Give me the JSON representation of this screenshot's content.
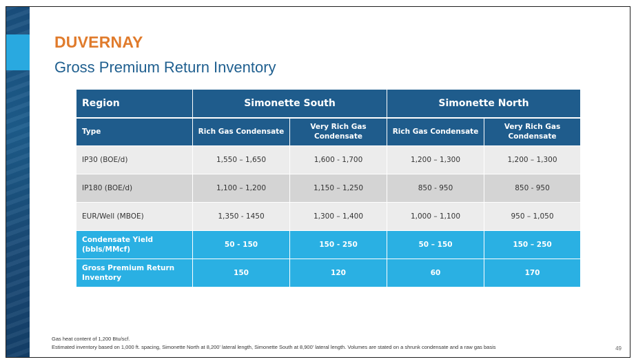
{
  "title": "DUVERNAY",
  "subtitle": "Gross Premium Return Inventory",
  "table": {
    "header": {
      "region_label": "Region",
      "groups": [
        "Simonette South",
        "Simonette North"
      ]
    },
    "subheader": {
      "type_label": "Type",
      "columns": [
        "Rich Gas Condensate",
        "Very Rich Gas Condensate",
        "Rich Gas Condensate",
        "Very Rich Gas Condensate"
      ]
    },
    "rows": [
      {
        "label": "IP30 (BOE/d)",
        "values": [
          "1,550 – 1,650",
          "1,600 - 1,700",
          "1,200 – 1,300",
          "1,200 – 1,300"
        ]
      },
      {
        "label": "IP180 (BOE/d)",
        "values": [
          "1,100 – 1,200",
          "1,150 – 1,250",
          "850 - 950",
          "850 - 950"
        ]
      },
      {
        "label": "EUR/Well (MBOE)",
        "values": [
          "1,350 - 1450",
          "1,300 – 1,400",
          "1,000 – 1,100",
          "950 – 1,050"
        ]
      },
      {
        "label": "Condensate Yield (bbls/MMcf)",
        "values": [
          "50 - 150",
          "150 - 250",
          "50 – 150",
          "150 – 250"
        ]
      },
      {
        "label": "Gross Premium Return Inventory",
        "values": [
          "150",
          "120",
          "60",
          "170"
        ]
      }
    ]
  },
  "notes": [
    "Gas heat content of 1,200 Btu/scf.",
    "Estimated inventory based on 1,000 ft. spacing, Simonette North at 8,200' lateral length, Simonette South at 8,900' lateral length. Volumes are stated on a shrunk condensate and a raw gas basis"
  ],
  "page_number": "49",
  "colors": {
    "title_orange": "#e07b2c",
    "header_blue": "#1f5c8c",
    "highlight_cyan": "#2ab0e3",
    "row_light": "#ececec",
    "row_dark": "#d4d4d4"
  }
}
